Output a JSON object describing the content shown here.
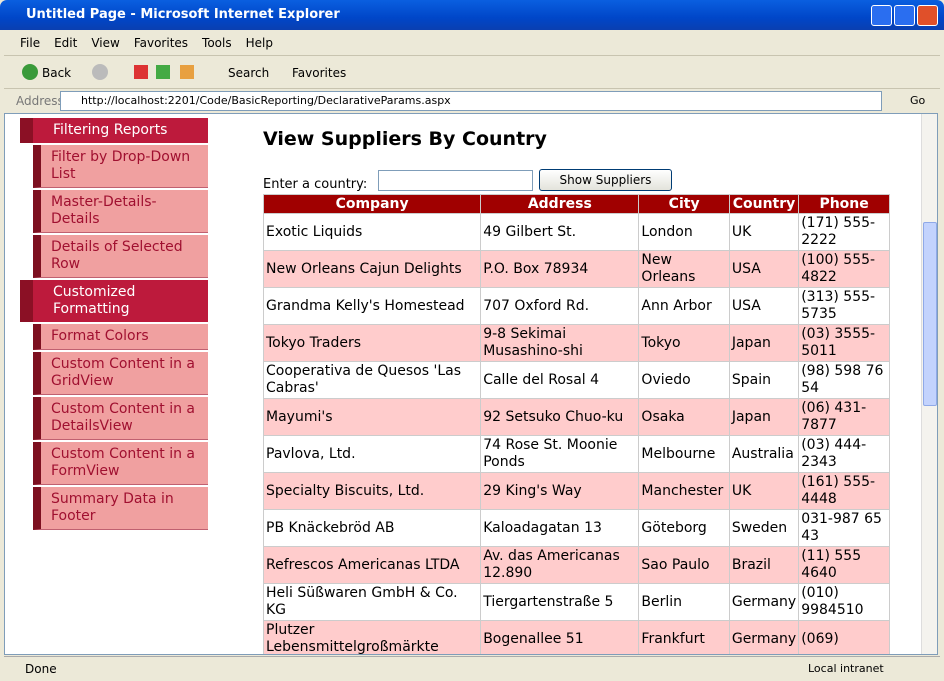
{
  "window": {
    "title": "Untitled Page - Microsoft Internet Explorer"
  },
  "menu": [
    "File",
    "Edit",
    "View",
    "Favorites",
    "Tools",
    "Help"
  ],
  "toolbar": {
    "back": "Back",
    "search": "Search",
    "favorites": "Favorites"
  },
  "address": {
    "label": "Address",
    "url": "http://localhost:2201/Code/BasicReporting/DeclarativeParams.aspx",
    "go": "Go"
  },
  "sidebar": [
    {
      "title": "Filtering Reports",
      "items": [
        "Filter by Drop-Down List",
        "Master-Details-Details",
        "Details of Selected Row"
      ]
    },
    {
      "title": "Customized Formatting",
      "items": [
        "Format Colors",
        "Custom Content in a GridView",
        "Custom Content in a DetailsView",
        "Custom Content in a FormView",
        "Summary Data in Footer"
      ]
    }
  ],
  "page": {
    "title": "View Suppliers By Country",
    "prompt": "Enter a country:",
    "button": "Show Suppliers"
  },
  "table": {
    "headers": [
      "Company",
      "Address",
      "City",
      "Country",
      "Phone"
    ],
    "rows": [
      [
        "Exotic Liquids",
        "49 Gilbert St.",
        "London",
        "UK",
        "(171) 555-2222"
      ],
      [
        "New Orleans Cajun Delights",
        "P.O. Box 78934",
        "New Orleans",
        "USA",
        "(100) 555-4822"
      ],
      [
        "Grandma Kelly's Homestead",
        "707 Oxford Rd.",
        "Ann Arbor",
        "USA",
        "(313) 555-5735"
      ],
      [
        "Tokyo Traders",
        "9-8 Sekimai Musashino-shi",
        "Tokyo",
        "Japan",
        "(03) 3555-5011"
      ],
      [
        "Cooperativa de Quesos 'Las Cabras'",
        "Calle del Rosal 4",
        "Oviedo",
        "Spain",
        "(98) 598 76 54"
      ],
      [
        "Mayumi's",
        "92 Setsuko Chuo-ku",
        "Osaka",
        "Japan",
        "(06) 431-7877"
      ],
      [
        "Pavlova, Ltd.",
        "74 Rose St. Moonie Ponds",
        "Melbourne",
        "Australia",
        "(03) 444-2343"
      ],
      [
        "Specialty Biscuits, Ltd.",
        "29 King's Way",
        "Manchester",
        "UK",
        "(161) 555-4448"
      ],
      [
        "PB Knäckebröd AB",
        "Kaloadagatan 13",
        "Göteborg",
        "Sweden",
        "031-987 65 43"
      ],
      [
        "Refrescos Americanas LTDA",
        "Av. das Americanas 12.890",
        "Sao Paulo",
        "Brazil",
        "(11) 555 4640"
      ],
      [
        "Heli Süßwaren GmbH & Co. KG",
        "Tiergartenstraße 5",
        "Berlin",
        "Germany",
        "(010) 9984510"
      ],
      [
        "Plutzer Lebensmittelgroßmärkte",
        "Bogenallee 51",
        "Frankfurt",
        "Germany",
        "(069)"
      ]
    ]
  },
  "status": {
    "text": "Done",
    "zone": "Local intranet"
  }
}
